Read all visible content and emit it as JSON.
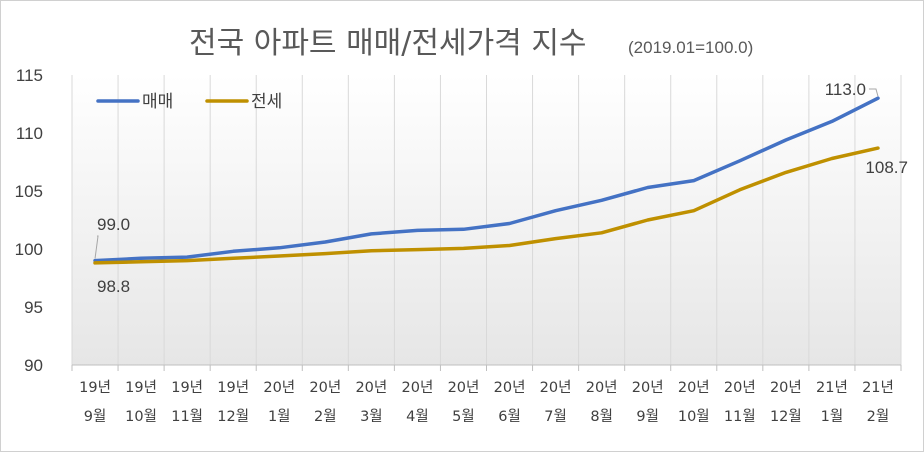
{
  "chart_data": {
    "type": "line",
    "title": "전국 아파트 매매/전세가격 지수",
    "subtitle": "(2019.01=100.0)",
    "ylim": [
      90,
      115
    ],
    "y_ticks": [
      90,
      95,
      100,
      105,
      110,
      115
    ],
    "grid": "vertical",
    "legend_position": "top-left",
    "categories": [
      [
        "19년",
        "9월"
      ],
      [
        "19년",
        "10월"
      ],
      [
        "19년",
        "11월"
      ],
      [
        "19년",
        "12월"
      ],
      [
        "20년",
        "1월"
      ],
      [
        "20년",
        "2월"
      ],
      [
        "20년",
        "3월"
      ],
      [
        "20년",
        "4월"
      ],
      [
        "20년",
        "5월"
      ],
      [
        "20년",
        "6월"
      ],
      [
        "20년",
        "7월"
      ],
      [
        "20년",
        "8월"
      ],
      [
        "20년",
        "9월"
      ],
      [
        "20년",
        "10월"
      ],
      [
        "20년",
        "11월"
      ],
      [
        "20년",
        "12월"
      ],
      [
        "21년",
        "1월"
      ],
      [
        "21년",
        "2월"
      ]
    ],
    "series": [
      {
        "name": "매매",
        "color": "#4472c4",
        "values": [
          99.0,
          99.2,
          99.3,
          99.8,
          100.1,
          100.6,
          101.3,
          101.6,
          101.7,
          102.2,
          103.3,
          104.2,
          105.3,
          105.9,
          107.6,
          109.4,
          111.0,
          113.0
        ]
      },
      {
        "name": "전세",
        "color": "#bf9000",
        "values": [
          98.8,
          98.9,
          99.0,
          99.2,
          99.4,
          99.6,
          99.85,
          99.95,
          100.05,
          100.3,
          100.9,
          101.4,
          102.5,
          103.3,
          105.1,
          106.6,
          107.8,
          108.7
        ]
      }
    ],
    "data_labels": [
      {
        "series": 0,
        "index": 0,
        "text": "99.0"
      },
      {
        "series": 1,
        "index": 0,
        "text": "98.8"
      },
      {
        "series": 0,
        "index": 17,
        "text": "113.0"
      },
      {
        "series": 1,
        "index": 17,
        "text": "108.7"
      }
    ]
  }
}
